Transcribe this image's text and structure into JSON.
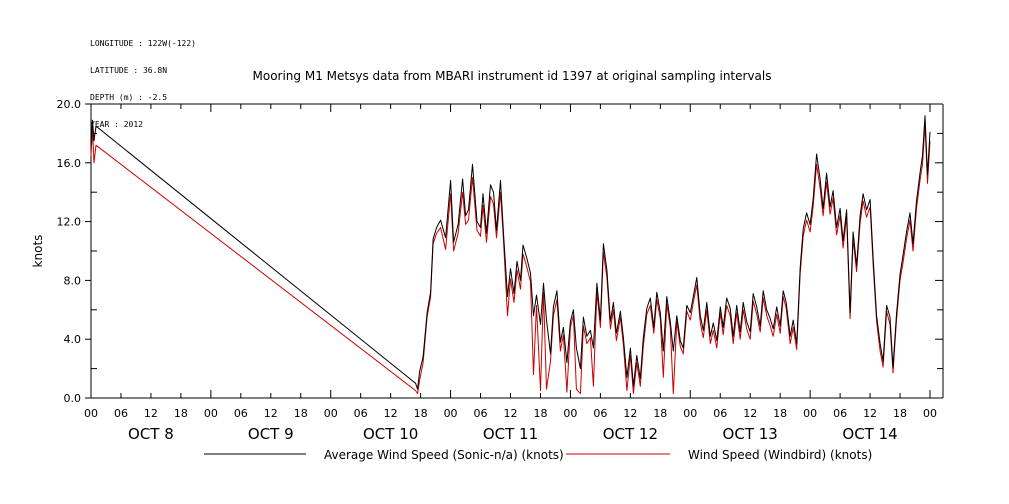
{
  "header": {
    "meta_lines": [
      "LONGITUDE : 122W(-122)",
      "LATITUDE : 36.8N",
      "DEPTH (m) : -2.5",
      "YEAR : 2012"
    ]
  },
  "chart_data": {
    "type": "line",
    "title": "Mooring M1 Metsys data from MBARI instrument id 1397 at original sampling intervals",
    "ylabel": "knots",
    "xlabel": "",
    "xlim": [
      0,
      168
    ],
    "ylim": [
      0,
      20
    ],
    "grid": false,
    "yticks": [
      0,
      4,
      8,
      12,
      16,
      20
    ],
    "ytick_labels": [
      "0.0",
      "4.0",
      "8.0",
      "12.0",
      "16.0",
      "20.0"
    ],
    "xticks": [
      0,
      6,
      12,
      18,
      24,
      30,
      36,
      42,
      48,
      54,
      60,
      66,
      72,
      78,
      84,
      90,
      96,
      102,
      108,
      114,
      120,
      126,
      132,
      138,
      144,
      150,
      156,
      162,
      168
    ],
    "xtick_labels": [
      "00",
      "06",
      "12",
      "18",
      "00",
      "06",
      "12",
      "18",
      "00",
      "06",
      "12",
      "18",
      "00",
      "06",
      "12",
      "18",
      "00",
      "06",
      "12",
      "18",
      "00",
      "06",
      "12",
      "18",
      "00",
      "06",
      "12",
      "18",
      "00"
    ],
    "day_labels": [
      {
        "hour": 12,
        "text": "OCT  8"
      },
      {
        "hour": 36,
        "text": "OCT  9"
      },
      {
        "hour": 60,
        "text": "OCT 10"
      },
      {
        "hour": 84,
        "text": "OCT 11"
      },
      {
        "hour": 108,
        "text": "OCT 12"
      },
      {
        "hour": 132,
        "text": "OCT 13"
      },
      {
        "hour": 156,
        "text": "OCT 14"
      }
    ],
    "legend_placement": "bottom",
    "series": [
      {
        "name": "Average Wind Speed (Sonic-n/a) (knots)",
        "color": "#000000",
        "x": [
          0,
          0.3,
          0.6,
          1.0,
          65.0,
          65.4,
          65.8,
          66.5,
          67.3,
          68.0,
          68.5,
          69.2,
          70.0,
          71.0,
          72.0,
          72.6,
          73.5,
          74.4,
          75.0,
          75.6,
          76.4,
          77.3,
          78.0,
          78.5,
          79.2,
          80.0,
          80.6,
          81.2,
          82.0,
          82.6,
          83.4,
          84.0,
          84.7,
          85.3,
          86.0,
          86.5,
          87.2,
          88.0,
          88.6,
          89.2,
          90.0,
          90.6,
          91.2,
          92.0,
          92.6,
          93.3,
          94.0,
          94.6,
          95.3,
          96.0,
          96.6,
          97.2,
          98.0,
          98.6,
          99.3,
          100.0,
          100.6,
          101.3,
          102.0,
          102.6,
          103.3,
          104.0,
          104.6,
          105.2,
          106.0,
          106.6,
          107.3,
          108.0,
          108.6,
          109.3,
          110.0,
          110.6,
          111.3,
          112.0,
          112.7,
          113.3,
          114.0,
          114.6,
          115.3,
          116.0,
          116.6,
          117.3,
          118.0,
          118.6,
          119.3,
          120.0,
          120.6,
          121.3,
          122.0,
          122.6,
          123.3,
          124.0,
          124.6,
          125.3,
          126.0,
          126.6,
          127.3,
          128.0,
          128.6,
          129.3,
          130.0,
          130.6,
          131.3,
          132.0,
          132.6,
          133.3,
          134.0,
          134.6,
          135.3,
          136.0,
          136.6,
          137.3,
          138.0,
          138.6,
          139.2,
          140.0,
          140.6,
          141.3,
          142.0,
          142.6,
          143.3,
          144.0,
          144.6,
          145.3,
          146.0,
          146.6,
          147.3,
          148.0,
          148.6,
          149.3,
          150.0,
          150.6,
          151.3,
          152.0,
          152.6,
          153.3,
          154.0,
          154.6,
          155.3,
          156.0,
          156.6,
          157.3,
          158.0,
          158.6,
          159.3,
          160.0,
          160.6,
          161.3,
          162.0,
          162.6,
          163.3,
          164.0,
          164.6,
          165.3,
          166.0,
          166.5,
          167.0,
          167.5,
          168.0
        ],
        "values": [
          17.2,
          18.9,
          17.5,
          18.5,
          1.0,
          0.6,
          1.8,
          2.8,
          5.8,
          7.2,
          10.8,
          11.6,
          12.1,
          10.9,
          14.8,
          10.6,
          11.8,
          14.9,
          12.4,
          12.8,
          15.9,
          12.0,
          11.6,
          13.9,
          11.2,
          14.5,
          14.0,
          11.4,
          14.8,
          11.2,
          6.9,
          8.8,
          7.1,
          9.3,
          8.0,
          10.4,
          9.6,
          8.5,
          5.6,
          7.0,
          5.0,
          7.8,
          5.3,
          3.0,
          6.2,
          7.3,
          3.8,
          4.8,
          2.4,
          5.2,
          6.0,
          3.4,
          2.0,
          5.5,
          4.2,
          4.6,
          3.4,
          7.8,
          5.3,
          10.5,
          8.7,
          5.2,
          6.5,
          4.4,
          5.9,
          4.1,
          1.4,
          3.4,
          0.8,
          2.9,
          1.3,
          4.1,
          6.1,
          6.8,
          4.8,
          7.2,
          5.8,
          3.2,
          6.9,
          5.2,
          3.2,
          5.6,
          3.9,
          3.4,
          6.3,
          5.8,
          6.9,
          8.2,
          5.6,
          4.6,
          6.5,
          4.2,
          5.1,
          3.9,
          6.2,
          4.8,
          6.8,
          6.1,
          4.2,
          6.3,
          4.5,
          6.5,
          5.2,
          4.5,
          7.1,
          6.2,
          4.9,
          7.3,
          6.0,
          5.4,
          4.7,
          6.2,
          4.9,
          7.3,
          6.5,
          4.2,
          5.3,
          3.7,
          8.9,
          11.5,
          12.6,
          11.8,
          13.5,
          16.6,
          14.9,
          12.9,
          15.3,
          13.0,
          14.1,
          11.6,
          12.9,
          10.7,
          12.8,
          5.8,
          11.3,
          9.0,
          12.4,
          13.9,
          12.8,
          13.5,
          9.6,
          5.6,
          3.7,
          2.5,
          6.3,
          5.5,
          2.1,
          5.7,
          8.4,
          9.7,
          11.3,
          12.6,
          10.5,
          13.4,
          15.3,
          16.5,
          19.2,
          15.2,
          18.1
        ]
      },
      {
        "name": "Wind Speed (Windbird) (knots)",
        "color": "#cc0000",
        "x": [
          0,
          0.3,
          0.6,
          1.0,
          65.0,
          65.4,
          65.8,
          66.5,
          67.3,
          68.0,
          68.5,
          69.2,
          70.0,
          71.0,
          72.0,
          72.6,
          73.5,
          74.4,
          75.0,
          75.6,
          76.4,
          77.3,
          78.0,
          78.5,
          79.2,
          80.0,
          80.6,
          81.2,
          82.0,
          82.6,
          83.4,
          84.0,
          84.7,
          85.3,
          86.0,
          86.5,
          87.2,
          88.0,
          88.6,
          89.2,
          90.0,
          90.6,
          91.2,
          92.0,
          92.6,
          93.3,
          94.0,
          94.6,
          95.3,
          96.0,
          96.6,
          97.2,
          98.0,
          98.6,
          99.3,
          100.0,
          100.6,
          101.3,
          102.0,
          102.6,
          103.3,
          104.0,
          104.6,
          105.2,
          106.0,
          106.6,
          107.3,
          108.0,
          108.6,
          109.3,
          110.0,
          110.6,
          111.3,
          112.0,
          112.7,
          113.3,
          114.0,
          114.6,
          115.3,
          116.0,
          116.6,
          117.3,
          118.0,
          118.6,
          119.3,
          120.0,
          120.6,
          121.3,
          122.0,
          122.6,
          123.3,
          124.0,
          124.6,
          125.3,
          126.0,
          126.6,
          127.3,
          128.0,
          128.6,
          129.3,
          130.0,
          130.6,
          131.3,
          132.0,
          132.6,
          133.3,
          134.0,
          134.6,
          135.3,
          136.0,
          136.6,
          137.3,
          138.0,
          138.6,
          139.2,
          140.0,
          140.6,
          141.3,
          142.0,
          142.6,
          143.3,
          144.0,
          144.6,
          145.3,
          146.0,
          146.6,
          147.3,
          148.0,
          148.6,
          149.3,
          150.0,
          150.6,
          151.3,
          152.0,
          152.6,
          153.3,
          154.0,
          154.6,
          155.3,
          156.0,
          156.6,
          157.3,
          158.0,
          158.6,
          159.3,
          160.0,
          160.6,
          161.3,
          162.0,
          162.6,
          163.3,
          164.0,
          164.6,
          165.3,
          166.0,
          166.5,
          167.0,
          167.5,
          168.0
        ],
        "values": [
          16.5,
          18.3,
          16.0,
          17.2,
          0.5,
          0.3,
          1.2,
          2.4,
          5.5,
          6.9,
          10.5,
          11.2,
          11.6,
          10.1,
          13.9,
          10.0,
          11.2,
          14.0,
          11.8,
          12.1,
          15.0,
          11.4,
          11.0,
          13.1,
          10.6,
          13.7,
          13.2,
          10.9,
          14.0,
          10.7,
          5.6,
          8.1,
          6.5,
          8.7,
          7.4,
          9.8,
          9.0,
          7.9,
          1.6,
          6.3,
          0.5,
          7.2,
          0.6,
          2.5,
          5.6,
          6.7,
          3.2,
          4.3,
          0.4,
          4.8,
          5.6,
          0.6,
          0.3,
          4.9,
          3.7,
          4.1,
          0.8,
          7.2,
          4.8,
          9.9,
          8.2,
          4.7,
          6.0,
          3.9,
          5.5,
          3.6,
          0.5,
          2.9,
          0.3,
          2.4,
          0.8,
          3.5,
          5.7,
          6.3,
          4.4,
          6.7,
          5.4,
          1.4,
          6.4,
          4.8,
          0.3,
          5.2,
          3.5,
          3.0,
          5.9,
          5.3,
          6.5,
          7.7,
          5.1,
          4.1,
          6.0,
          3.7,
          4.6,
          3.4,
          5.8,
          4.3,
          6.3,
          5.6,
          3.7,
          5.8,
          4.0,
          6.0,
          4.7,
          4.0,
          6.6,
          5.7,
          4.5,
          6.8,
          5.6,
          4.9,
          4.2,
          5.7,
          4.4,
          6.9,
          6.1,
          3.7,
          4.8,
          3.3,
          8.5,
          11.0,
          12.1,
          11.3,
          13.0,
          15.9,
          14.3,
          12.4,
          14.7,
          12.5,
          13.6,
          11.1,
          12.4,
          10.2,
          12.3,
          5.4,
          10.8,
          8.6,
          11.9,
          13.4,
          12.3,
          13.0,
          9.1,
          5.2,
          3.2,
          2.1,
          5.9,
          5.0,
          1.7,
          5.3,
          8.0,
          9.2,
          10.8,
          12.1,
          10.0,
          12.9,
          14.8,
          15.9,
          18.6,
          14.6,
          17.5
        ]
      }
    ]
  }
}
